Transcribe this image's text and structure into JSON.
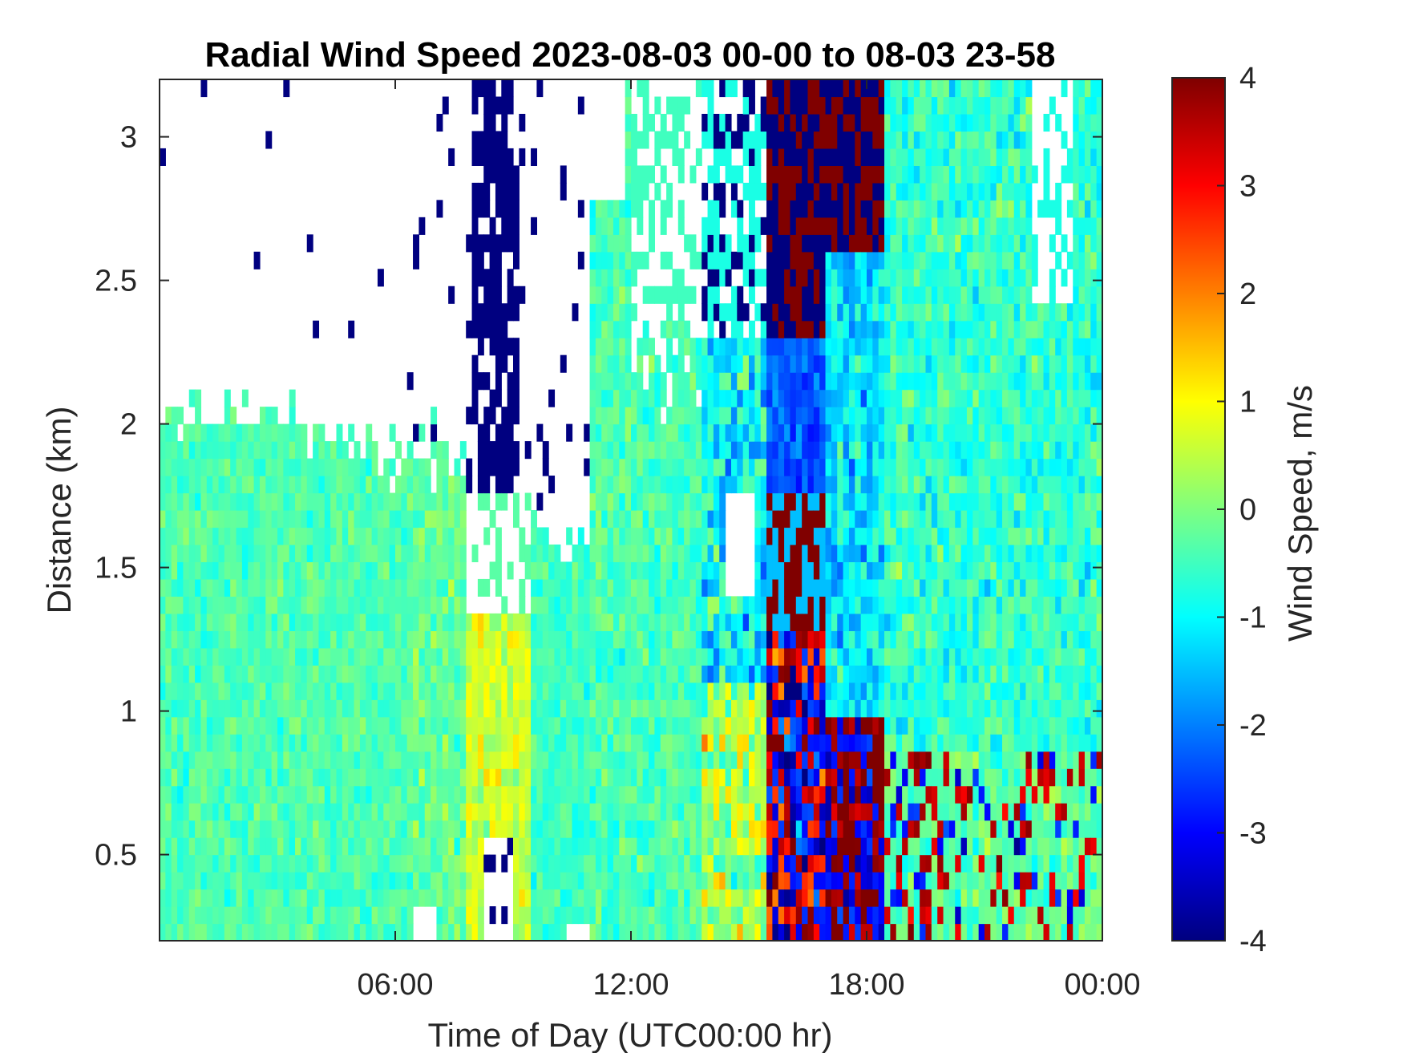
{
  "chart_data": {
    "type": "heatmap",
    "title": "Radial Wind Speed 2023-08-03 00-00 to 08-03 23-58",
    "xlabel": "Time of Day (UTC00:00 hr)",
    "ylabel": "Distance (km)",
    "colorbar_label": "Wind Speed, m/s",
    "colormap": "jet",
    "xlim_hours": [
      0,
      24
    ],
    "ylim_km": [
      0.2,
      3.2
    ],
    "clim": [
      -4,
      4
    ],
    "x_ticks": [
      {
        "value": 6,
        "label": "06:00"
      },
      {
        "value": 12,
        "label": "12:00"
      },
      {
        "value": 18,
        "label": "18:00"
      },
      {
        "value": 24,
        "label": "00:00"
      }
    ],
    "y_ticks": [
      {
        "value": 0.5,
        "label": "0.5"
      },
      {
        "value": 1.0,
        "label": "1"
      },
      {
        "value": 1.5,
        "label": "1.5"
      },
      {
        "value": 2.0,
        "label": "2"
      },
      {
        "value": 2.5,
        "label": "2.5"
      },
      {
        "value": 3.0,
        "label": "3"
      }
    ],
    "colorbar_ticks": [
      {
        "value": 4,
        "label": "4"
      },
      {
        "value": 3,
        "label": "3"
      },
      {
        "value": 2,
        "label": "2"
      },
      {
        "value": 1,
        "label": "1"
      },
      {
        "value": 0,
        "label": "0"
      },
      {
        "value": -1,
        "label": "-1"
      },
      {
        "value": -2,
        "label": "-2"
      },
      {
        "value": -3,
        "label": "-3"
      },
      {
        "value": -4,
        "label": "-4"
      }
    ],
    "grid": false
  }
}
